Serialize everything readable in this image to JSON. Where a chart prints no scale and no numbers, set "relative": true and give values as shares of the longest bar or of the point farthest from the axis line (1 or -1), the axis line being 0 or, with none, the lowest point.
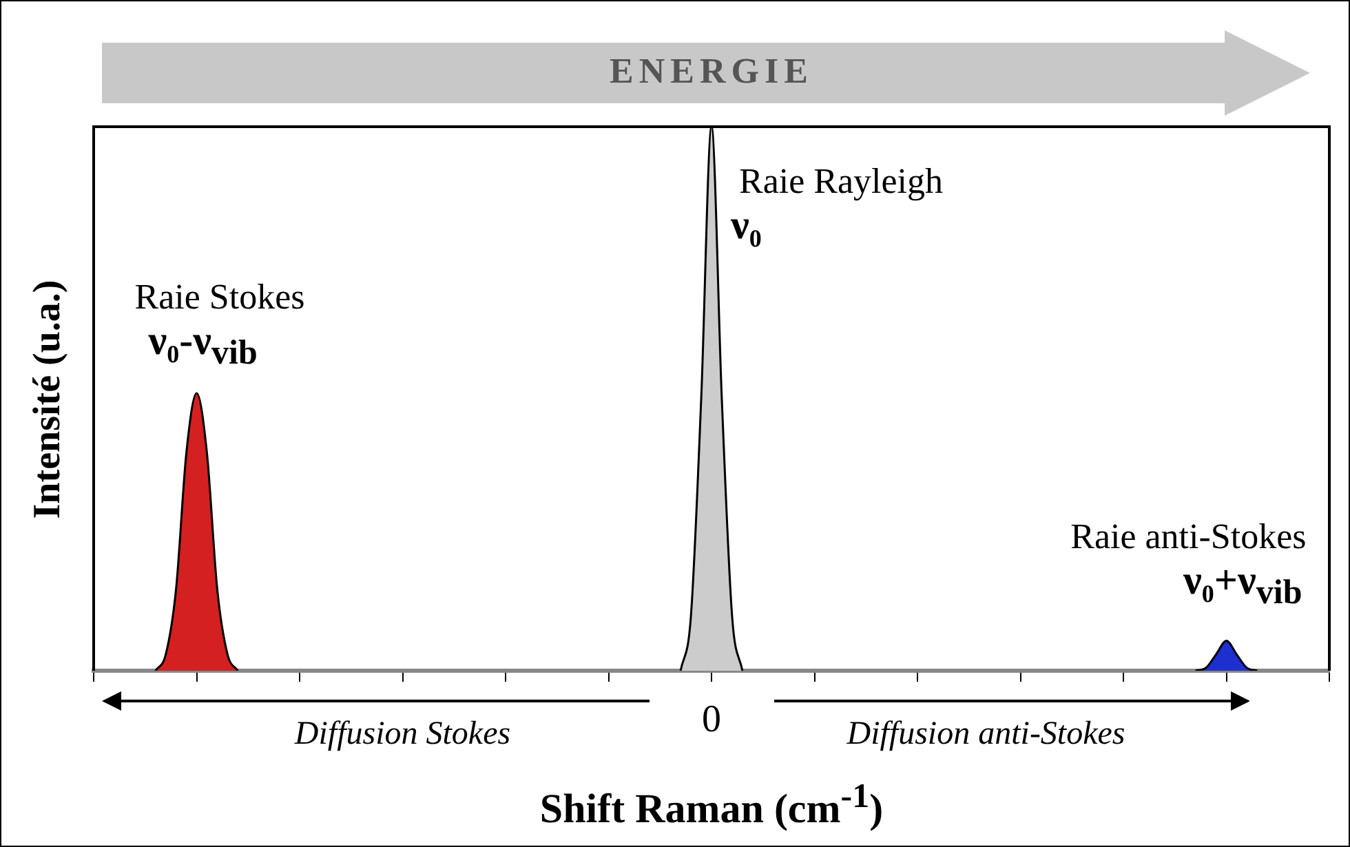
{
  "chart_data": {
    "type": "area",
    "relative": true,
    "xlabel": "Shift Raman (cm$^{-1}$)",
    "ylabel": "Intensité (u.a.)",
    "categories": [
      null,
      null,
      null,
      null,
      null,
      null,
      null,
      null,
      null,
      null,
      null,
      null,
      null,
      null,
      null,
      null,
      null,
      null,
      null,
      null,
      null,
      null,
      null,
      null,
      null,
      null,
      null,
      null,
      null,
      null,
      null,
      null,
      null,
      null,
      null,
      null,
      null,
      null,
      null,
      null,
      null,
      null,
      null,
      null,
      null,
      null,
      null,
      null,
      null,
      null,
      null,
      null,
      null,
      null,
      null,
      null,
      null,
      null,
      null,
      null,
      null,
      null,
      null,
      null,
      null,
      null,
      null,
      null,
      null,
      null,
      null,
      null,
      null,
      null,
      null,
      null,
      null,
      null,
      null,
      null,
      null,
      null,
      null,
      null,
      null,
      null,
      null,
      null,
      null,
      null,
      null,
      null,
      null,
      null,
      null,
      null,
      null,
      null,
      null,
      null,
      null,
      null,
      null,
      null,
      null,
      null,
      null,
      null,
      null,
      null,
      null,
      null,
      null,
      null,
      null,
      null,
      null,
      null,
      null,
      null,
      null
    ],
    "series": [
      {
        "color": "#d42020",
        "values": [
          null,
          null,
          null,
          null,
          null,
          null,
          0,
          0.03,
          0.15,
          0.4,
          0.51,
          0.4,
          0.15,
          0.03,
          0,
          null,
          null,
          null,
          null,
          null,
          null,
          null,
          null,
          null,
          null,
          null,
          null,
          null,
          null,
          null,
          null,
          null,
          null,
          null,
          null,
          null,
          null,
          null,
          null,
          null,
          null,
          null,
          null,
          null,
          null,
          null,
          null,
          null,
          null,
          null,
          null,
          null,
          null,
          null,
          null,
          null,
          null,
          null,
          null,
          null,
          null,
          null,
          null,
          null,
          null,
          null,
          null,
          null,
          null,
          null,
          null,
          null,
          null,
          null,
          null,
          null,
          null,
          null,
          null,
          null,
          null,
          null,
          null,
          null,
          null,
          null,
          null,
          null,
          null,
          null,
          null,
          null,
          null,
          null,
          null,
          null,
          null,
          null,
          null,
          null,
          null,
          null,
          null,
          null,
          null,
          null,
          null,
          null,
          null,
          null,
          null,
          null,
          null,
          null,
          null,
          null,
          null,
          null,
          null,
          null,
          null
        ]
      },
      {
        "color": "#cccccc",
        "values": [
          null,
          null,
          null,
          null,
          null,
          null,
          null,
          null,
          null,
          null,
          null,
          null,
          null,
          null,
          null,
          null,
          null,
          null,
          null,
          null,
          null,
          null,
          null,
          null,
          null,
          null,
          null,
          null,
          null,
          null,
          null,
          null,
          null,
          null,
          null,
          null,
          null,
          null,
          null,
          null,
          null,
          null,
          null,
          null,
          null,
          null,
          null,
          null,
          null,
          null,
          null,
          null,
          null,
          null,
          null,
          null,
          null,
          0,
          0.1,
          0.5,
          1,
          0.5,
          0.1,
          0,
          null,
          null,
          null,
          null,
          null,
          null,
          null,
          null,
          null,
          null,
          null,
          null,
          null,
          null,
          null,
          null,
          null,
          null,
          null,
          null,
          null,
          null,
          null,
          null,
          null,
          null,
          null,
          null,
          null,
          null,
          null,
          null,
          null,
          null,
          null,
          null,
          null,
          null,
          null,
          null,
          null,
          null,
          null,
          null,
          null,
          null,
          null,
          null,
          null,
          null,
          null,
          null,
          null,
          null,
          null,
          null,
          null
        ]
      },
      {
        "color": "#1e2fd0",
        "values": [
          null,
          null,
          null,
          null,
          null,
          null,
          null,
          null,
          null,
          null,
          null,
          null,
          null,
          null,
          null,
          null,
          null,
          null,
          null,
          null,
          null,
          null,
          null,
          null,
          null,
          null,
          null,
          null,
          null,
          null,
          null,
          null,
          null,
          null,
          null,
          null,
          null,
          null,
          null,
          null,
          null,
          null,
          null,
          null,
          null,
          null,
          null,
          null,
          null,
          null,
          null,
          null,
          null,
          null,
          null,
          null,
          null,
          null,
          null,
          null,
          null,
          null,
          null,
          null,
          null,
          null,
          null,
          null,
          null,
          null,
          null,
          null,
          null,
          null,
          null,
          null,
          null,
          null,
          null,
          null,
          null,
          null,
          null,
          null,
          null,
          null,
          null,
          null,
          null,
          null,
          null,
          null,
          null,
          null,
          null,
          null,
          null,
          null,
          null,
          null,
          null,
          null,
          null,
          null,
          null,
          null,
          null,
          0,
          0.005,
          0.03,
          0.055,
          0.03,
          0.005,
          0,
          null,
          null,
          null,
          null,
          null,
          null,
          null
        ]
      }
    ],
    "annotations": [
      "ENERGIE",
      "Raie Stokes",
      "ν₀-ν$_{vib}$",
      "Raie Rayleigh",
      "ν₀",
      "Raie anti-Stokes",
      "ν₀+ν$_{vib}$",
      "Diffusion Stokes",
      "Diffusion anti-Stokes",
      "0"
    ]
  }
}
